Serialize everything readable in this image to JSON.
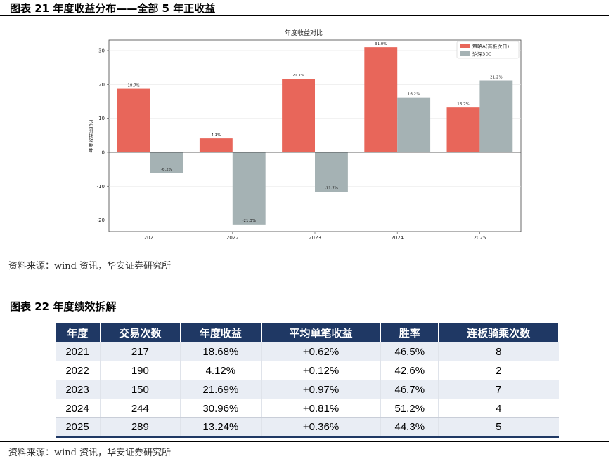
{
  "figure21": {
    "caption": "图表 21 年度收益分布——全部 5 年正收益",
    "source": "资料来源：wind 资讯，华安证券研究所"
  },
  "figure22": {
    "caption": "图表 22 年度绩效拆解",
    "source": "资料来源：wind 资讯，华安证券研究所"
  },
  "chart_data": {
    "type": "bar",
    "title": "年度收益对比",
    "xlabel": "",
    "ylabel": "年度收益率(%)",
    "categories": [
      "2021",
      "2022",
      "2023",
      "2024",
      "2025"
    ],
    "series": [
      {
        "name": "策略A(首板次日)",
        "values": [
          18.7,
          4.1,
          21.7,
          31.0,
          13.2
        ],
        "labels": [
          "18.7%",
          "4.1%",
          "21.7%",
          "31.0%",
          "13.2%"
        ],
        "color": "#e8665a"
      },
      {
        "name": "沪深300",
        "values": [
          -6.2,
          -21.3,
          -11.7,
          16.2,
          21.2
        ],
        "labels": [
          "-6.2%",
          "-21.3%",
          "-11.7%",
          "16.2%",
          "21.2%"
        ],
        "color": "#a5b2b4"
      }
    ],
    "yticks": [
      "30",
      "20",
      "10",
      "0",
      "-10",
      "-20"
    ],
    "ylim": [
      -23.4,
      33.1
    ],
    "grid": true,
    "legend": "top-right"
  },
  "table": {
    "headers": [
      "年度",
      "交易次数",
      "年度收益",
      "平均单笔收益",
      "胜率",
      "连板骑乘次数"
    ],
    "rows": [
      [
        "2021",
        "217",
        "18.68%",
        "+0.62%",
        "46.5%",
        "8"
      ],
      [
        "2022",
        "190",
        "4.12%",
        "+0.12%",
        "42.6%",
        "2"
      ],
      [
        "2023",
        "150",
        "21.69%",
        "+0.97%",
        "46.7%",
        "7"
      ],
      [
        "2024",
        "244",
        "30.96%",
        "+0.81%",
        "51.2%",
        "4"
      ],
      [
        "2025",
        "289",
        "13.24%",
        "+0.36%",
        "44.3%",
        "5"
      ]
    ],
    "header_color": "#1f3864"
  }
}
